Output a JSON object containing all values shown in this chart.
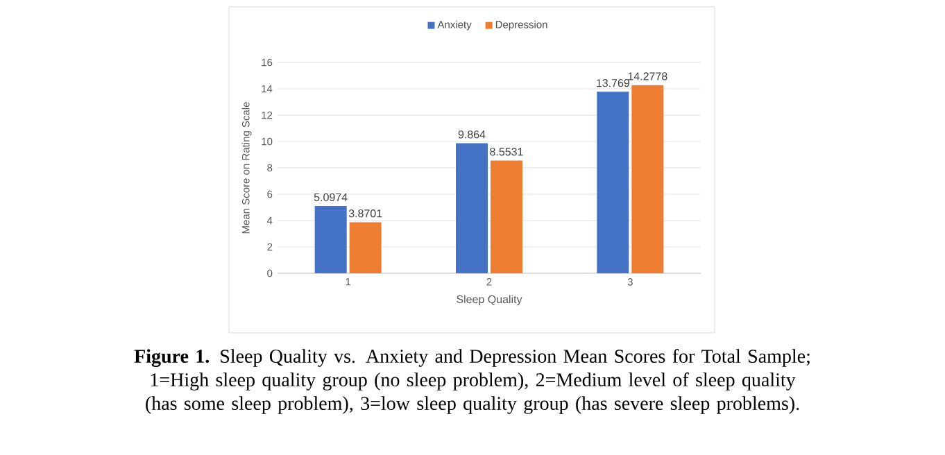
{
  "chart_data": {
    "type": "bar",
    "categories": [
      "1",
      "2",
      "3"
    ],
    "series": [
      {
        "name": "Anxiety",
        "color": "#4472c4",
        "values": [
          5.0974,
          9.864,
          13.769
        ]
      },
      {
        "name": "Depression",
        "color": "#ed7d31",
        "values": [
          3.8701,
          8.5531,
          14.2778
        ]
      }
    ],
    "xlabel": "Sleep Quality",
    "ylabel": "Mean Score on Rating Scale",
    "ylim": [
      0,
      16
    ],
    "yticks": [
      0,
      2,
      4,
      6,
      8,
      10,
      12,
      14,
      16
    ],
    "grid": "y",
    "legend": "top",
    "data_labels": true,
    "annotations": [
      "**Figure 1.** Sleep Quality vs. Anxiety and Depression Mean Scores for Total Sample; 1=High sleep quality group (no sleep problem), 2=Medium level of sleep quality (has some sleep problem), 3=low sleep quality group (has severe sleep problems)."
    ]
  }
}
